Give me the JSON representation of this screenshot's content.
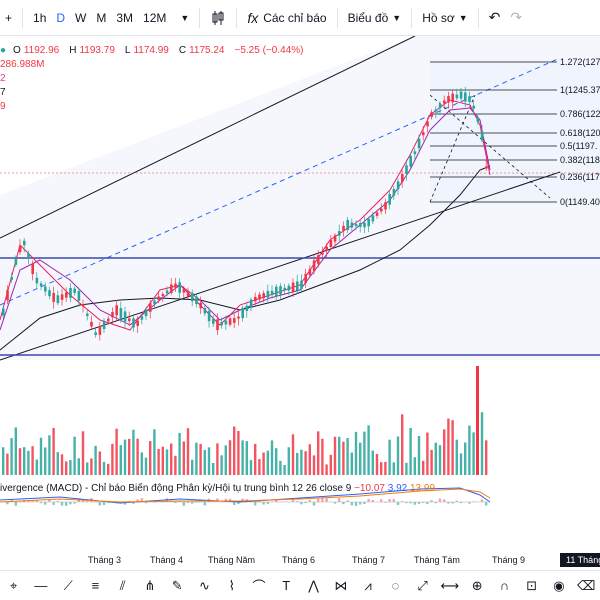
{
  "toolbar": {
    "add": "+",
    "intervals": [
      "1h",
      "D",
      "W",
      "M",
      "3M",
      "12M"
    ],
    "active_interval": "D",
    "chart_type_icon": "candles-icon",
    "indicators_icon": "fx",
    "indicators_label": "Các chỉ báo",
    "chart_label": "Biểu đồ",
    "profile_label": "Hồ sơ",
    "undo": "↶",
    "redo": "↷"
  },
  "legend": {
    "ohlc": {
      "o_label": "O",
      "o": "1192.96",
      "h_label": "H",
      "h": "1193.79",
      "l_label": "L",
      "l": "1174.99",
      "c_label": "C",
      "c": "1175.24",
      "change": "−5.25 (−0.44%)"
    },
    "volume": "286.988M",
    "line2": "2",
    "line3": "7",
    "line4": "9"
  },
  "fib_levels": [
    {
      "label": "1.272(127",
      "key": "1272"
    },
    {
      "label": "1(1245.37",
      "key": "1"
    },
    {
      "label": "0.786(122",
      "key": "786"
    },
    {
      "label": "0.618(120",
      "key": "618"
    },
    {
      "label": "0.5(1197.",
      "key": "5"
    },
    {
      "label": "0.382(118",
      "key": "382"
    },
    {
      "label": "0.236(117",
      "key": "236"
    },
    {
      "label": "0(1149.40",
      "key": "0"
    }
  ],
  "macd_legend": {
    "name": "ivergence (MACD) - Chỉ báo Biến động Phân kỳ/Hội tụ trung bình 12 26 close 9",
    "v1": "−10.07",
    "v2": "3.92",
    "v3": "13.99"
  },
  "time_axis": {
    "months": [
      "Tháng 3",
      "Tháng 4",
      "Tháng Năm",
      "Tháng 6",
      "Tháng 7",
      "Tháng Tám",
      "Tháng 9"
    ],
    "current_date": "11 Tháng"
  },
  "colors": {
    "up": "#26a69a",
    "down": "#f23645",
    "ma_fast": "#e91e63",
    "ma_slow": "#9c27b0",
    "ma_long": "#131722",
    "channel": "#2962ff",
    "support_line": "#3949ab"
  },
  "drawing_tools": [
    "cursor-icon",
    "horizontal-line-icon",
    "ray-icon",
    "fib-icon",
    "channel-icon",
    "pitchfork-icon",
    "brush-icon",
    "curve-icon",
    "path-icon",
    "arc-icon",
    "text-icon",
    "pattern-icon",
    "abcd-icon",
    "elliott-icon",
    "cycle-icon",
    "forecast-icon",
    "measure-icon",
    "zoom-icon",
    "magnet-icon",
    "lock-icon",
    "eye-icon",
    "trash-icon"
  ]
}
